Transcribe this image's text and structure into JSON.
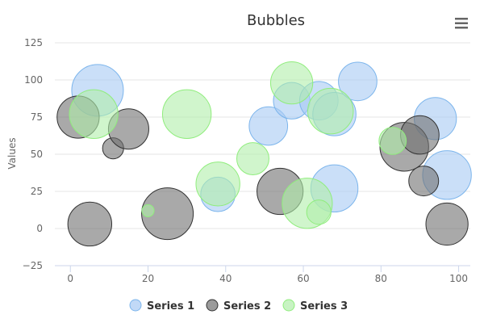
{
  "chart_data": {
    "type": "bubble",
    "title": "Bubbles",
    "xlabel": "",
    "ylabel": "Values",
    "xlim": [
      -4,
      103
    ],
    "ylim": [
      -25,
      125
    ],
    "x_ticks": [
      0,
      20,
      40,
      60,
      80,
      100
    ],
    "y_ticks": [
      -25,
      0,
      25,
      50,
      75,
      100,
      125
    ],
    "grid": "horizontal",
    "legend_position": "bottom-center",
    "series": [
      {
        "name": "Series 1",
        "fill": "#a7c9f3",
        "stroke": "#7cb5ec",
        "points": [
          {
            "x": 7,
            "y": 93,
            "z": 9
          },
          {
            "x": 38,
            "y": 23,
            "z": 4
          },
          {
            "x": 51,
            "y": 69,
            "z": 5
          },
          {
            "x": 57,
            "y": 86,
            "z": 4.5
          },
          {
            "x": 64,
            "y": 86,
            "z": 5
          },
          {
            "x": 68,
            "y": 27,
            "z": 7.5
          },
          {
            "x": 68,
            "y": 77,
            "z": 6.3
          },
          {
            "x": 74,
            "y": 99,
            "z": 5
          },
          {
            "x": 94,
            "y": 74,
            "z": 6
          },
          {
            "x": 97,
            "y": 36,
            "z": 8
          }
        ]
      },
      {
        "name": "Series 2",
        "fill": "#707070",
        "stroke": "#333333",
        "points": [
          {
            "x": 2,
            "y": 75,
            "z": 6
          },
          {
            "x": 5,
            "y": 3,
            "z": 6.5
          },
          {
            "x": 11,
            "y": 54,
            "z": 1.5
          },
          {
            "x": 15,
            "y": 67,
            "z": 5.5
          },
          {
            "x": 25,
            "y": 10,
            "z": 9
          },
          {
            "x": 54,
            "y": 25,
            "z": 7.2
          },
          {
            "x": 86,
            "y": 55,
            "z": 8
          },
          {
            "x": 90,
            "y": 63,
            "z": 5
          },
          {
            "x": 91,
            "y": 32,
            "z": 3
          },
          {
            "x": 97,
            "y": 3,
            "z": 6
          }
        ]
      },
      {
        "name": "Series 3",
        "fill": "#b1eeaa",
        "stroke": "#90ed7d",
        "points": [
          {
            "x": 6,
            "y": 77,
            "z": 8
          },
          {
            "x": 20,
            "y": 12,
            "z": 0.5
          },
          {
            "x": 30,
            "y": 77,
            "z": 8
          },
          {
            "x": 38,
            "y": 30,
            "z": 6.5
          },
          {
            "x": 47,
            "y": 47,
            "z": 3.5
          },
          {
            "x": 57,
            "y": 98,
            "z": 6
          },
          {
            "x": 61,
            "y": 17,
            "z": 8.5
          },
          {
            "x": 64,
            "y": 11,
            "z": 2
          },
          {
            "x": 67,
            "y": 79,
            "z": 7
          },
          {
            "x": 83,
            "y": 59,
            "z": 2.5
          }
        ]
      }
    ]
  },
  "menu_icon": "hamburger-menu-icon"
}
